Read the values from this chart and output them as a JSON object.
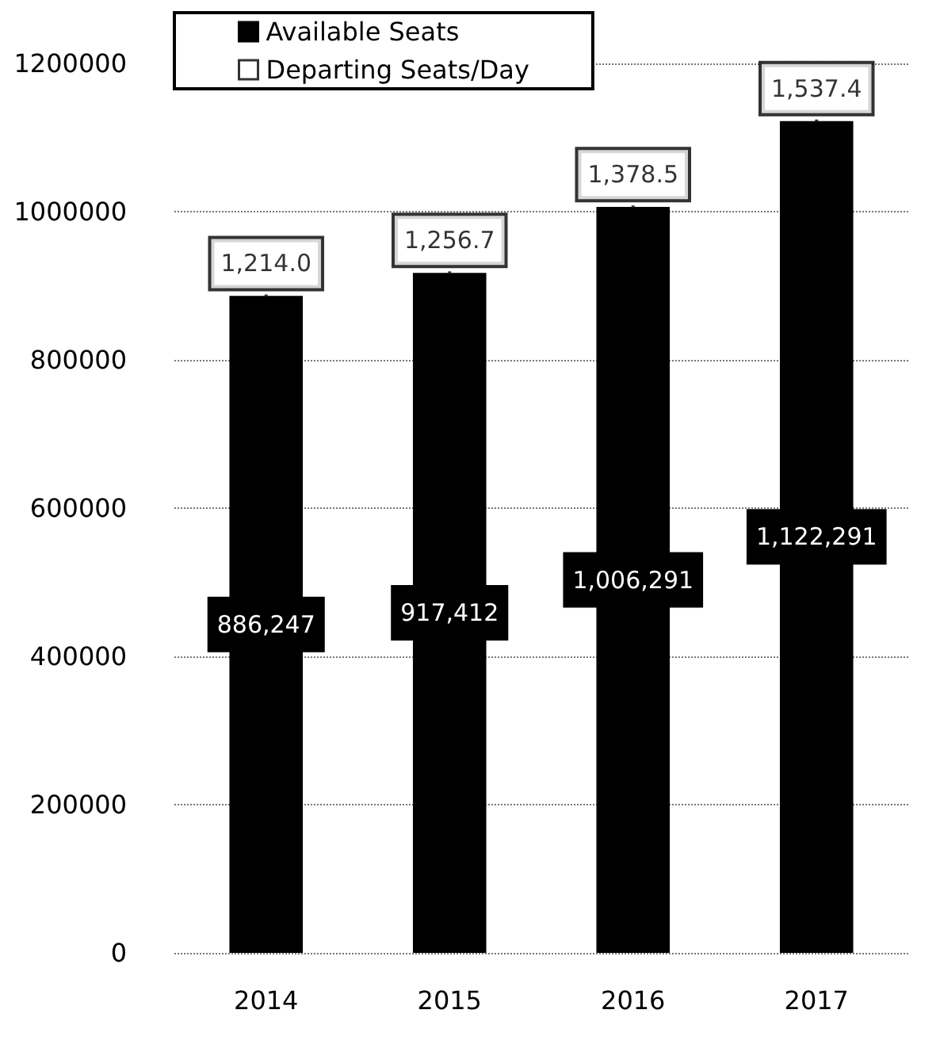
{
  "chart_data": {
    "type": "bar",
    "categories": [
      "2014",
      "2015",
      "2016",
      "2017"
    ],
    "series": [
      {
        "name": "Available Seats",
        "color": "#000000",
        "values": [
          886247,
          917412,
          1006291,
          1122291
        ],
        "value_labels": [
          "886,247",
          "917,412",
          "1,006,291",
          "1,122,291"
        ]
      },
      {
        "name": "Departing Seats/Day",
        "type": "scatter",
        "axis": "y2",
        "color": "#ffffff",
        "marker": "square",
        "values": [
          1214.0,
          1256.7,
          1378.5,
          1537.4
        ],
        "value_labels": [
          "1,214.0",
          "1,256.7",
          "1,378.5",
          "1,537.4"
        ]
      }
    ],
    "ylim": [
      0,
      1200000
    ],
    "yticks": [
      0,
      200000,
      400000,
      600000,
      800000,
      1000000,
      1200000
    ],
    "y2lim": [
      0,
      1644
    ],
    "grid": "y",
    "legend": "top left"
  }
}
